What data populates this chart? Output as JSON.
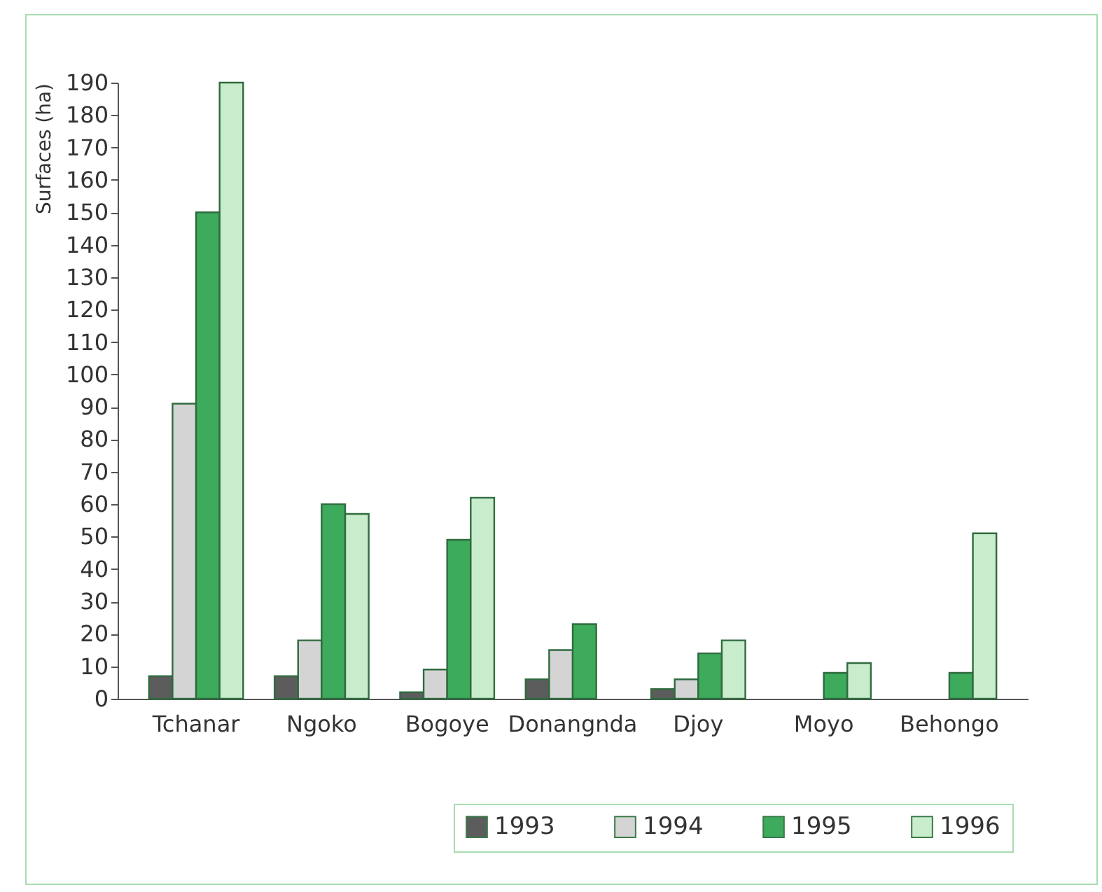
{
  "chart_data": {
    "type": "bar",
    "ylabel": "Surfaces (ha)",
    "categories": [
      "Tchanar",
      "Ngoko",
      "Bogoye",
      "Donangnda",
      "Djoy",
      "Moyo",
      "Behongo"
    ],
    "series": [
      {
        "name": "1993",
        "color": "#5c5c5c",
        "values": [
          7,
          7,
          2,
          6,
          3,
          null,
          null
        ]
      },
      {
        "name": "1994",
        "color": "#d4d4d4",
        "values": [
          91,
          18,
          9,
          15,
          6,
          null,
          null
        ]
      },
      {
        "name": "1995",
        "color": "#3daa5c",
        "values": [
          150,
          60,
          49,
          23,
          14,
          8,
          8
        ]
      },
      {
        "name": "1996",
        "color": "#c8eccc",
        "values": [
          190,
          57,
          62,
          null,
          18,
          11,
          51
        ]
      }
    ],
    "ylim": [
      0,
      190
    ],
    "yticks": [
      0,
      10,
      20,
      30,
      40,
      50,
      60,
      70,
      80,
      90,
      100,
      110,
      120,
      130,
      140,
      150,
      160,
      170,
      180,
      190
    ],
    "grid": false,
    "legend": "bottom right"
  }
}
